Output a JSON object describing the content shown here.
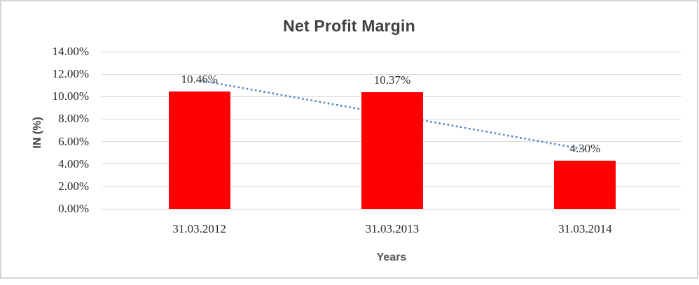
{
  "chart_data": {
    "type": "bar",
    "title": "Net Profit Margin",
    "categories": [
      "31.03.2012",
      "31.03.2013",
      "31.03.2014"
    ],
    "values": [
      10.46,
      10.37,
      4.3
    ],
    "data_labels": [
      "10.46%",
      "10.37%",
      "4.30%"
    ],
    "xlabel": "Years",
    "ylabel": "IN (%)",
    "ylim": [
      0,
      14
    ],
    "ytick_labels": [
      "14.00%",
      "12.00%",
      "10.00%",
      "8.00%",
      "6.00%",
      "4.00%",
      "2.00%",
      "0.00%"
    ],
    "grid": true,
    "legend": "none",
    "bar_color": "#ff0000",
    "trendline": {
      "type": "linear",
      "style": "dotted",
      "color": "#4e87c8"
    },
    "colors": {
      "gridline": "#d9d9d9",
      "frame_border": "#d4d4d4",
      "title_text": "#404040",
      "axis_text": "#262626",
      "axis_title_text": "#595959",
      "background": "#ffffff"
    }
  }
}
